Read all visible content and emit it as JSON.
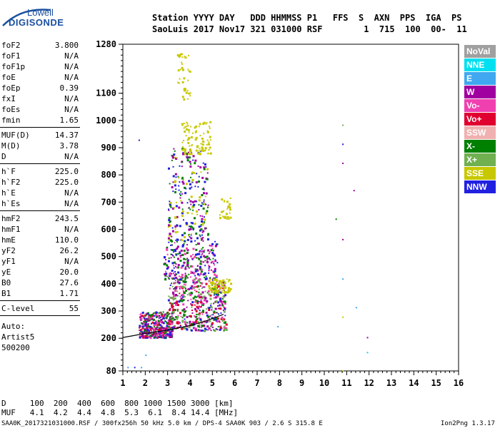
{
  "logo": {
    "line1": "Lowell",
    "line2": "DIGISONDE"
  },
  "header": {
    "line1": "Station YYYY DAY   DDD HHMMSS P1   FFS  S  AXN  PPS  IGA  PS",
    "line2": "SaoLuis 2017 Nov17 321 031000 RSF        1  715  100  00-  11"
  },
  "params": [
    {
      "key": "foF2",
      "value": "3.800"
    },
    {
      "key": "foF1",
      "value": "N/A"
    },
    {
      "key": "foF1p",
      "value": "N/A"
    },
    {
      "key": "foE",
      "value": "N/A"
    },
    {
      "key": "foEp",
      "value": "0.39"
    },
    {
      "key": "fxI",
      "value": "N/A"
    },
    {
      "key": "foEs",
      "value": "N/A"
    },
    {
      "key": "fmin",
      "value": "1.65"
    },
    {
      "key": "MUF(D)",
      "value": "14.37"
    },
    {
      "key": "M(D)",
      "value": "3.78"
    },
    {
      "key": "D",
      "value": "N/A"
    },
    {
      "key": "h`F",
      "value": "225.0"
    },
    {
      "key": "h`F2",
      "value": "225.0"
    },
    {
      "key": "h`E",
      "value": "N/A"
    },
    {
      "key": "h`Es",
      "value": "N/A"
    },
    {
      "key": "hmF2",
      "value": "243.5"
    },
    {
      "key": "hmF1",
      "value": "N/A"
    },
    {
      "key": "hmE",
      "value": "110.0"
    },
    {
      "key": "yF2",
      "value": "26.2"
    },
    {
      "key": "yF1",
      "value": "N/A"
    },
    {
      "key": "yE",
      "value": "20.0"
    },
    {
      "key": "B0",
      "value": "27.6"
    },
    {
      "key": "B1",
      "value": "1.71"
    },
    {
      "key": "C-level",
      "value": "55"
    }
  ],
  "auto": {
    "line1": "Auto:",
    "line2": "Artist5",
    "line3": "500200"
  },
  "legend": [
    {
      "label": "NoVal",
      "color": "#a0a0a0"
    },
    {
      "label": "NNE",
      "color": "#00e0f0"
    },
    {
      "label": "E",
      "color": "#40a8f0"
    },
    {
      "label": "W",
      "color": "#a000a0"
    },
    {
      "label": "Vo-",
      "color": "#f040b0"
    },
    {
      "label": "Vo+",
      "color": "#e00030"
    },
    {
      "label": "SSW",
      "color": "#f0b0b0"
    },
    {
      "label": "X-",
      "color": "#008000"
    },
    {
      "label": "X+",
      "color": "#70b050"
    },
    {
      "label": "SSE",
      "color": "#c8c800"
    },
    {
      "label": "NNW",
      "color": "#2020e0"
    }
  ],
  "chart_data": {
    "type": "scatter",
    "title": "",
    "xlabel": "",
    "ylabel": "",
    "xlim": [
      1,
      16
    ],
    "ylim": [
      80,
      1280
    ],
    "x_ticks": [
      1,
      2,
      3,
      4,
      5,
      6,
      7,
      8,
      9,
      10,
      11,
      12,
      13,
      14,
      15,
      16
    ],
    "y_ticks": [
      80,
      200,
      300,
      400,
      500,
      600,
      700,
      800,
      900,
      1000,
      1100,
      1280
    ],
    "y_tick_labels": [
      "80",
      "200",
      "300",
      "400",
      "500",
      "600",
      "700",
      "800",
      "900",
      "1000",
      "1100",
      "1280"
    ],
    "grid": false,
    "trace_curve": {
      "x": [
        1.0,
        1.5,
        2.0,
        2.5,
        3.0,
        3.5,
        4.0,
        4.5,
        5.0,
        5.5
      ],
      "y": [
        203,
        210,
        218,
        224,
        230,
        238,
        247,
        258,
        272,
        288
      ]
    },
    "clusters": [
      {
        "x": [
          1.7,
          3.2
        ],
        "y": [
          205,
          300
        ],
        "n": 420,
        "color_index": [
          4,
          5,
          3,
          7,
          10
        ]
      },
      {
        "x": [
          3.0,
          5.6
        ],
        "y": [
          230,
          420
        ],
        "n": 500,
        "color_index": [
          4,
          5,
          3,
          7,
          10,
          8
        ]
      },
      {
        "x": [
          2.8,
          5.2
        ],
        "y": [
          420,
          560
        ],
        "n": 260,
        "color_index": [
          3,
          10,
          4,
          7
        ]
      },
      {
        "x": [
          3.0,
          4.8
        ],
        "y": [
          560,
          900
        ],
        "n": 260,
        "color_index": [
          3,
          10,
          9,
          7
        ]
      },
      {
        "x": [
          3.6,
          4.9
        ],
        "y": [
          880,
          1000
        ],
        "n": 90,
        "color_index": [
          9
        ]
      },
      {
        "x": [
          3.4,
          4.0
        ],
        "y": [
          1080,
          1250
        ],
        "n": 40,
        "color_index": [
          9
        ]
      },
      {
        "x": [
          4.8,
          5.8
        ],
        "y": [
          370,
          420
        ],
        "n": 80,
        "color_index": [
          9
        ]
      },
      {
        "x": [
          5.3,
          5.8
        ],
        "y": [
          640,
          720
        ],
        "n": 30,
        "color_index": [
          9
        ]
      }
    ],
    "outliers": [
      {
        "x": 1.7,
        "y": 930,
        "c": 10
      },
      {
        "x": 10.8,
        "y": 985,
        "c": 8
      },
      {
        "x": 10.8,
        "y": 915,
        "c": 10
      },
      {
        "x": 10.8,
        "y": 845,
        "c": 3
      },
      {
        "x": 11.3,
        "y": 745,
        "c": 3
      },
      {
        "x": 10.5,
        "y": 640,
        "c": 7
      },
      {
        "x": 10.8,
        "y": 565,
        "c": 3
      },
      {
        "x": 10.8,
        "y": 420,
        "c": 2
      },
      {
        "x": 11.4,
        "y": 315,
        "c": 2
      },
      {
        "x": 7.9,
        "y": 245,
        "c": 2
      },
      {
        "x": 11.9,
        "y": 205,
        "c": 3
      },
      {
        "x": 11.9,
        "y": 150,
        "c": 1
      },
      {
        "x": 10.8,
        "y": 280,
        "c": 9
      },
      {
        "x": 10.8,
        "y": 82,
        "c": 9
      },
      {
        "x": 2.0,
        "y": 140,
        "c": 2
      },
      {
        "x": 1.2,
        "y": 95,
        "c": 2
      },
      {
        "x": 1.5,
        "y": 95,
        "c": 10
      },
      {
        "x": 1.8,
        "y": 95,
        "c": 2
      }
    ]
  },
  "footer": {
    "d_row": "D     100  200  400  600  800 1000 1500 3000 [km]",
    "muf_row": "MUF   4.1  4.2  4.4  4.8  5.3  6.1  8.4 14.4 [MHz]",
    "info_line": "SAA0K_2017321031000.RSF / 300fx256h 50 kHz 5.0 km / DPS-4 SAA0K 903 / 2.6 S 315.8 E",
    "version": "Ion2Png 1.3.17"
  }
}
